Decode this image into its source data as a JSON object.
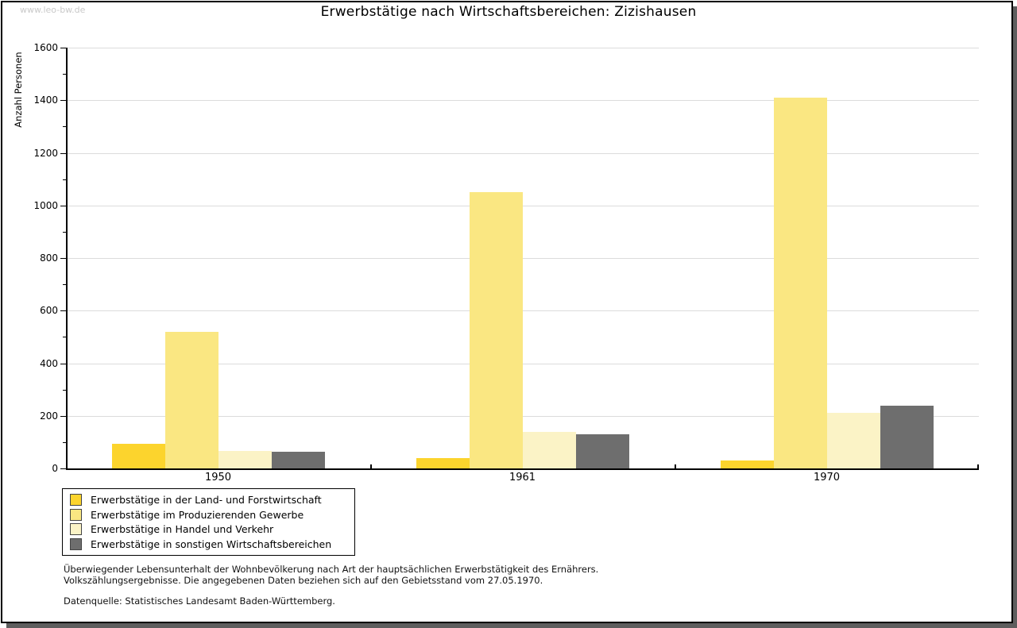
{
  "watermark": "www.leo-bw.de",
  "title": "Erwerbstätige nach Wirtschaftsbereichen: Zizishausen",
  "chart_data": {
    "type": "bar",
    "title": "Erwerbstätige nach Wirtschaftsbereichen: Zizishausen",
    "xlabel": "",
    "ylabel": "Anzahl Personen",
    "categories": [
      "1950",
      "1961",
      "1970"
    ],
    "series": [
      {
        "name": "Erwerbstätige in der Land- und Forstwirtschaft",
        "color": "#FCD42D",
        "values": [
          95,
          40,
          30
        ]
      },
      {
        "name": "Erwerbstätige im Produzierenden Gewerbe",
        "color": "#FAE782",
        "values": [
          520,
          1050,
          1410
        ]
      },
      {
        "name": "Erwerbstätige in Handel und Verkehr",
        "color": "#FBF3C6",
        "values": [
          65,
          140,
          210
        ]
      },
      {
        "name": "Erwerbstätige in sonstigen Wirtschaftsbereichen",
        "color": "#6E6E6E",
        "values": [
          63,
          130,
          240
        ]
      }
    ],
    "ylim": [
      0,
      1600
    ],
    "ytick_step": 200,
    "ytick_minor_step": 100,
    "grid": "horizontal",
    "legend_position": "bottom-left"
  },
  "footnotes": {
    "line1": "Überwiegender Lebensunterhalt der Wohnbevölkerung nach Art der hauptsächlichen Erwerbstätigkeit des Ernährers.",
    "line2": "Volkszählungsergebnisse. Die angegebenen Daten beziehen sich auf den Gebietsstand vom 27.05.1970.",
    "source": "Datenquelle: Statistisches Landesamt Baden-Württemberg."
  }
}
